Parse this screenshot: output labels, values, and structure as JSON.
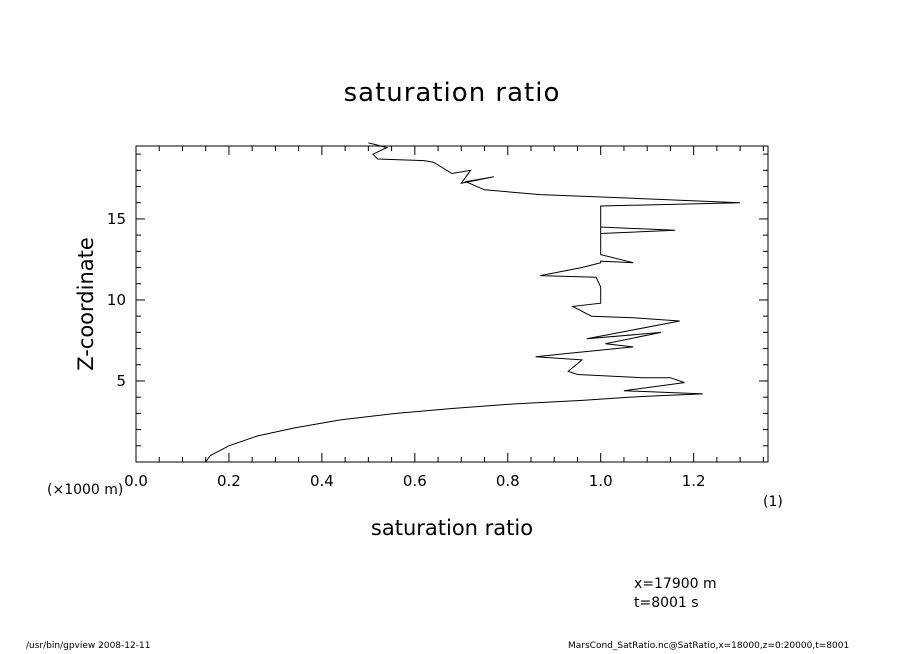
{
  "chart_data": {
    "type": "line",
    "title": "saturation ratio",
    "xlabel": "saturation ratio",
    "ylabel": "Z-coordinate",
    "xlabel_sub": "(1)",
    "ylabel_sub": "(×1000 m)",
    "xlim": [
      0.0,
      1.36
    ],
    "ylim": [
      0,
      19.5
    ],
    "xticks": [
      "0.0",
      "0.2",
      "0.4",
      "0.6",
      "0.8",
      "1.0",
      "1.2"
    ],
    "yticks": [
      "5",
      "10",
      "15"
    ],
    "grid": false,
    "series": [
      {
        "x": [
          0.15,
          0.16,
          0.2,
          0.26,
          0.34,
          0.44,
          0.56,
          0.68,
          0.82,
          0.96,
          1.06,
          1.13,
          1.22,
          1.05,
          1.18,
          1.15,
          1.09,
          0.95,
          0.93,
          0.96,
          0.86,
          0.93,
          1.07,
          1.01,
          1.13,
          0.97,
          1.17,
          1.07,
          0.98,
          0.94,
          1.0,
          1.0,
          0.99,
          0.87,
          0.96,
          1.0,
          1.0,
          1.07,
          1.0,
          1.0,
          1.16,
          1.0,
          1.0,
          1.3,
          1.05,
          0.87,
          0.75,
          0.71,
          0.77,
          0.7,
          0.72,
          0.68,
          0.64,
          0.62,
          0.52,
          0.51,
          0.54,
          0.5
        ],
        "y": [
          0.0,
          0.4,
          1.0,
          1.6,
          2.1,
          2.6,
          3.0,
          3.3,
          3.6,
          3.8,
          4.0,
          4.1,
          4.2,
          4.4,
          4.9,
          5.2,
          5.2,
          5.4,
          5.6,
          6.3,
          6.5,
          6.7,
          7.1,
          7.3,
          8.0,
          7.6,
          8.7,
          8.9,
          9.0,
          9.6,
          9.8,
          10.8,
          11.4,
          11.5,
          12.0,
          12.3,
          12.4,
          12.3,
          12.8,
          14.5,
          14.3,
          14.1,
          15.8,
          16.0,
          16.3,
          16.5,
          16.8,
          17.3,
          17.6,
          17.2,
          18.0,
          17.8,
          18.5,
          18.6,
          18.7,
          19.0,
          19.4,
          19.7
        ]
      }
    ]
  },
  "annotations": {
    "x_position": "x=17900  m",
    "time": "t=8001  s"
  },
  "footer": {
    "left": "/usr/bin/gpview   2008-12-11",
    "right": "MarsCond_SatRatio.nc@SatRatio,x=18000,z=0:20000,t=8001"
  }
}
